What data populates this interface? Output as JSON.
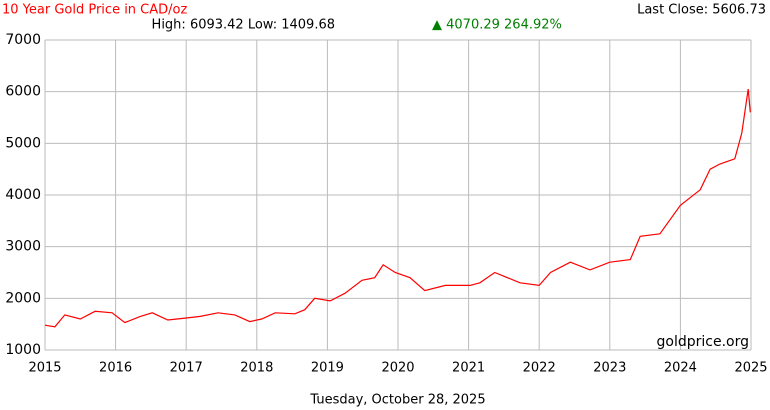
{
  "chart_data": {
    "type": "line",
    "title": "10 Year Gold Price in CAD/oz",
    "last_close": "Last Close: 5606.73",
    "high_low": "High: 6093.42 Low: 1409.68",
    "change": "▲ 4070.29 264.92%",
    "watermark": "goldprice.org",
    "date": "Tuesday, October 28, 2025",
    "x": [
      2015.0,
      2015.14,
      2015.28,
      2015.5,
      2015.71,
      2015.95,
      2016.13,
      2016.35,
      2016.52,
      2016.74,
      2017.0,
      2017.2,
      2017.45,
      2017.69,
      2017.9,
      2018.07,
      2018.26,
      2018.54,
      2018.68,
      2018.82,
      2019.04,
      2019.25,
      2019.49,
      2019.67,
      2019.79,
      2019.96,
      2020.17,
      2020.38,
      2020.67,
      2021.02,
      2021.16,
      2021.37,
      2021.73,
      2022.0,
      2022.16,
      2022.44,
      2022.72,
      2023.0,
      2023.29,
      2023.43,
      2023.71,
      2024.0,
      2024.28,
      2024.42,
      2024.56,
      2024.77,
      2024.87,
      2024.96,
      2024.99
    ],
    "series": [
      {
        "name": "Gold CAD/oz",
        "color": "#ff0000",
        "values": [
          1480,
          1450,
          1680,
          1600,
          1750,
          1720,
          1530,
          1650,
          1720,
          1580,
          1620,
          1650,
          1720,
          1680,
          1550,
          1600,
          1720,
          1700,
          1780,
          2000,
          1950,
          2100,
          2350,
          2400,
          2650,
          2500,
          2400,
          2150,
          2250,
          2250,
          2300,
          2500,
          2300,
          2250,
          2500,
          2700,
          2550,
          2700,
          2750,
          3200,
          3250,
          3800,
          4100,
          4500,
          4600,
          4700,
          5200,
          6050,
          5600
        ]
      }
    ],
    "xlim": [
      2015,
      2025
    ],
    "xticks": [
      2015,
      2016,
      2017,
      2018,
      2019,
      2020,
      2021,
      2022,
      2023,
      2024,
      2025
    ],
    "ylim": [
      1000,
      7000
    ],
    "yticks": [
      1000,
      2000,
      3000,
      4000,
      5000,
      6000,
      7000
    ],
    "grid": true
  }
}
